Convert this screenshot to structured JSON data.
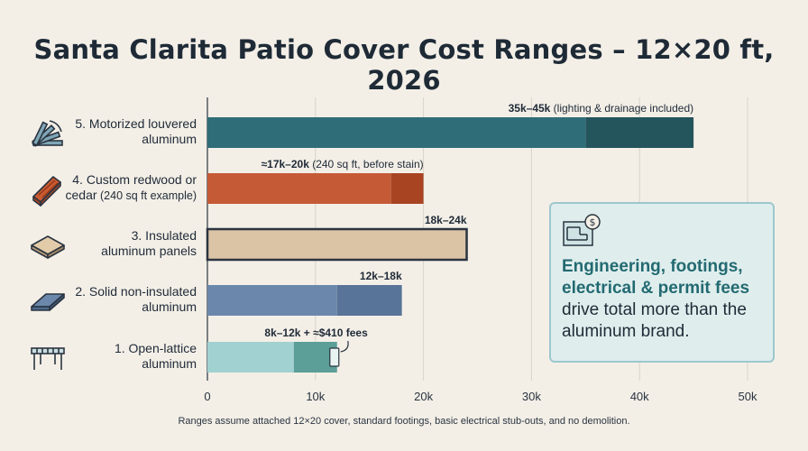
{
  "chart_data": {
    "type": "bar",
    "orientation": "horizontal",
    "title": "Santa Clarita Patio Cover Cost Ranges – 12×20 ft, 2026",
    "xlabel": "",
    "ylabel": "",
    "xlim": [
      0,
      50000
    ],
    "x_ticks": [
      0,
      10000,
      20000,
      30000,
      40000,
      50000
    ],
    "x_tick_labels": [
      "0",
      "10k",
      "20k",
      "30k",
      "40k",
      "50k"
    ],
    "grid": "vertical",
    "categories": [
      {
        "line1": "5. Motorized louvered",
        "line2": "aluminum",
        "line2_note": ""
      },
      {
        "line1": "4. Custom redwood or",
        "line2": "cedar",
        "line2_note": "(240 sq ft example)"
      },
      {
        "line1": "3. Insulated",
        "line2": "aluminum panels",
        "line2_note": ""
      },
      {
        "line1": "2. Solid non-insulated",
        "line2": "aluminum",
        "line2_note": ""
      },
      {
        "line1": "1. Open-lattice",
        "line2": "aluminum",
        "line2_note": ""
      }
    ],
    "series": [
      {
        "low": 35000,
        "high": 45000,
        "range_label": "35k–45k",
        "note": "(lighting & drainage included)",
        "color_light": "#2f6e78",
        "color_dark": "#24545c",
        "icon": "louver-icon"
      },
      {
        "low": 17000,
        "high": 20000,
        "range_label": "≈17k–20k",
        "note": "(240 sq ft, before stain)",
        "color_light": "#c55b36",
        "color_dark": "#a84422",
        "icon": "lumber-icon"
      },
      {
        "low": 18000,
        "high": 24000,
        "range_label": "18k–24k",
        "note": "",
        "color_light": "#dbc3a5",
        "color_dark": "#dbc3a5",
        "icon": "panel-stack-icon"
      },
      {
        "low": 12000,
        "high": 18000,
        "range_label": "12k–18k",
        "note": "",
        "color_light": "#6b88ac",
        "color_dark": "#587498",
        "icon": "flat-panel-icon"
      },
      {
        "low": 8000,
        "high": 12000,
        "range_label": "8k–12k + ≈$410 fees",
        "note": "",
        "color_light": "#a2d1d1",
        "color_dark": "#5c9e98",
        "icon": "pergola-icon"
      }
    ]
  },
  "callout": {
    "highlight": "Engineering, footings, electrical & permit fees",
    "rest": "drive total more than the aluminum brand.",
    "icon": "blueprint-cost-icon"
  },
  "footnote": "Ranges assume attached 12×20 cover, standard footings, basic electrical stub-outs, and no demolition."
}
